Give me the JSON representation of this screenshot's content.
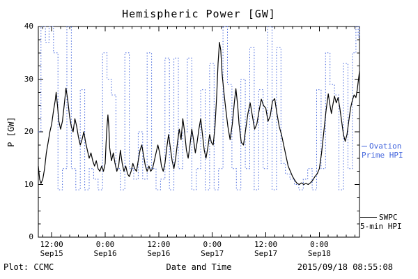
{
  "chart_data": {
    "type": "line",
    "title": "Hemispheric Power [GW]",
    "xlabel": "Date and Time",
    "ylabel": "P [GW]",
    "ylim": [
      0,
      40
    ],
    "y_ticks": [
      0,
      10,
      20,
      30,
      40
    ],
    "xlim_hours": [
      9,
      81
    ],
    "x_unit": "hours from Sep15 00:00",
    "grid": false,
    "legend_position": "right-outside",
    "x_ticks": [
      {
        "t": 12,
        "time": "12:00",
        "date": "Sep15"
      },
      {
        "t": 24,
        "time": "0:00",
        "date": "Sep16"
      },
      {
        "t": 36,
        "time": "12:00",
        "date": "Sep16"
      },
      {
        "t": 48,
        "time": "0:00",
        "date": "Sep17"
      },
      {
        "t": 60,
        "time": "12:00",
        "date": "Sep17"
      },
      {
        "t": 72,
        "time": "0:00",
        "date": "Sep18"
      }
    ],
    "series": [
      {
        "name": "Ovation Prime HPI",
        "color": "#4466dd",
        "style": "dotted-step",
        "points": [
          [
            9,
            20
          ],
          [
            9.6,
            40
          ],
          [
            10.6,
            37
          ],
          [
            11.4,
            40
          ],
          [
            12.4,
            35
          ],
          [
            13.4,
            9
          ],
          [
            14.4,
            13
          ],
          [
            15.4,
            40
          ],
          [
            16.4,
            13
          ],
          [
            17.4,
            9
          ],
          [
            18.4,
            28
          ],
          [
            19.4,
            9
          ],
          [
            20.4,
            13
          ],
          [
            21.4,
            11
          ],
          [
            22.4,
            9
          ],
          [
            23.4,
            35
          ],
          [
            24.4,
            30
          ],
          [
            25.4,
            27
          ],
          [
            26.4,
            13
          ],
          [
            27.4,
            9
          ],
          [
            28.4,
            35
          ],
          [
            29.4,
            13
          ],
          [
            30.4,
            11
          ],
          [
            31.4,
            20
          ],
          [
            32.4,
            11
          ],
          [
            33.4,
            35
          ],
          [
            34.4,
            13
          ],
          [
            35.4,
            9
          ],
          [
            36.4,
            11
          ],
          [
            37.4,
            34
          ],
          [
            38.4,
            9
          ],
          [
            39.4,
            34
          ],
          [
            40.4,
            13
          ],
          [
            41.4,
            20
          ],
          [
            42.4,
            34
          ],
          [
            43.4,
            9
          ],
          [
            44.4,
            13
          ],
          [
            45.4,
            28
          ],
          [
            46.4,
            9
          ],
          [
            47.4,
            33
          ],
          [
            48.4,
            9
          ],
          [
            49.4,
            13
          ],
          [
            50.4,
            40
          ],
          [
            51.4,
            29
          ],
          [
            52.4,
            13
          ],
          [
            53.4,
            9
          ],
          [
            54.4,
            30
          ],
          [
            55.4,
            13
          ],
          [
            56.4,
            36
          ],
          [
            57.4,
            9
          ],
          [
            58.4,
            28
          ],
          [
            59.4,
            13
          ],
          [
            60.4,
            40
          ],
          [
            61.4,
            9
          ],
          [
            62.4,
            36
          ],
          [
            63.4,
            14
          ],
          [
            64.4,
            12
          ],
          [
            65.4,
            11
          ],
          [
            66.4,
            10
          ],
          [
            67.4,
            9
          ],
          [
            68.4,
            11
          ],
          [
            69.4,
            13
          ],
          [
            70.4,
            9
          ],
          [
            71.4,
            28
          ],
          [
            72.4,
            13
          ],
          [
            73.4,
            35
          ],
          [
            74.4,
            29
          ],
          [
            75.4,
            27
          ],
          [
            76.4,
            9
          ],
          [
            77.4,
            33
          ],
          [
            78.4,
            13
          ],
          [
            79.4,
            35
          ],
          [
            80.2,
            40
          ],
          [
            80.7,
            38
          ],
          [
            81,
            40
          ]
        ]
      },
      {
        "name": "SWPC 5-min HPI",
        "color": "#000000",
        "style": "solid",
        "points": [
          [
            9,
            13.5
          ],
          [
            9.3,
            11
          ],
          [
            9.6,
            10.2
          ],
          [
            10,
            11
          ],
          [
            10.4,
            13
          ],
          [
            10.8,
            16
          ],
          [
            11.2,
            18
          ],
          [
            11.6,
            20
          ],
          [
            12,
            21.5
          ],
          [
            12.4,
            24
          ],
          [
            12.8,
            26
          ],
          [
            13,
            27.5
          ],
          [
            13.3,
            25
          ],
          [
            13.6,
            22
          ],
          [
            14,
            20.5
          ],
          [
            14.4,
            22
          ],
          [
            14.8,
            25
          ],
          [
            15.2,
            28.3
          ],
          [
            15.6,
            26
          ],
          [
            16,
            23
          ],
          [
            16.4,
            21
          ],
          [
            16.8,
            20
          ],
          [
            17.2,
            22.5
          ],
          [
            17.6,
            21
          ],
          [
            18,
            19
          ],
          [
            18.4,
            17.5
          ],
          [
            18.8,
            18.5
          ],
          [
            19.2,
            20
          ],
          [
            19.6,
            18
          ],
          [
            20,
            16.5
          ],
          [
            20.4,
            15
          ],
          [
            20.8,
            16
          ],
          [
            21.2,
            14.5
          ],
          [
            21.6,
            13.5
          ],
          [
            22,
            14.5
          ],
          [
            22.4,
            13
          ],
          [
            22.8,
            12.5
          ],
          [
            23.2,
            13.5
          ],
          [
            23.6,
            12.5
          ],
          [
            24,
            14
          ],
          [
            24.2,
            18
          ],
          [
            24.4,
            21
          ],
          [
            24.6,
            23.2
          ],
          [
            24.8,
            21
          ],
          [
            25,
            17
          ],
          [
            25.4,
            14.5
          ],
          [
            25.8,
            16
          ],
          [
            26.2,
            14
          ],
          [
            26.6,
            12.5
          ],
          [
            27,
            13.5
          ],
          [
            27.4,
            16.5
          ],
          [
            27.8,
            14
          ],
          [
            28.2,
            12.5
          ],
          [
            28.6,
            13.5
          ],
          [
            29,
            12
          ],
          [
            29.4,
            11.5
          ],
          [
            29.8,
            12.5
          ],
          [
            30.2,
            14
          ],
          [
            30.6,
            13
          ],
          [
            31,
            12.5
          ],
          [
            31.4,
            14.5
          ],
          [
            31.8,
            16.5
          ],
          [
            32.2,
            17.5
          ],
          [
            32.6,
            15.5
          ],
          [
            33,
            13.5
          ],
          [
            33.4,
            12.5
          ],
          [
            33.8,
            13.5
          ],
          [
            34.2,
            12.5
          ],
          [
            34.6,
            13
          ],
          [
            35,
            14.5
          ],
          [
            35.4,
            16
          ],
          [
            35.8,
            17.5
          ],
          [
            36.2,
            16
          ],
          [
            36.6,
            13.5
          ],
          [
            37,
            12.5
          ],
          [
            37.4,
            14
          ],
          [
            37.8,
            17
          ],
          [
            38.2,
            19.5
          ],
          [
            38.6,
            17
          ],
          [
            39,
            14.5
          ],
          [
            39.4,
            13
          ],
          [
            39.8,
            15
          ],
          [
            40.2,
            18
          ],
          [
            40.6,
            20.5
          ],
          [
            41,
            18.5
          ],
          [
            41.4,
            22.5
          ],
          [
            41.8,
            20
          ],
          [
            42.2,
            16.5
          ],
          [
            42.6,
            15
          ],
          [
            43,
            17.5
          ],
          [
            43.4,
            20.5
          ],
          [
            43.8,
            18.5
          ],
          [
            44.2,
            16
          ],
          [
            44.6,
            18
          ],
          [
            45,
            20.5
          ],
          [
            45.4,
            22.5
          ],
          [
            45.8,
            19.5
          ],
          [
            46.2,
            16.5
          ],
          [
            46.6,
            15
          ],
          [
            47,
            17
          ],
          [
            47.4,
            19.5
          ],
          [
            47.8,
            18
          ],
          [
            48.2,
            17.5
          ],
          [
            48.6,
            21
          ],
          [
            49,
            27
          ],
          [
            49.3,
            33
          ],
          [
            49.6,
            37
          ],
          [
            49.9,
            35.5
          ],
          [
            50.2,
            31
          ],
          [
            50.6,
            27.5
          ],
          [
            51,
            24.5
          ],
          [
            51.5,
            21
          ],
          [
            52,
            18.5
          ],
          [
            52.5,
            21.5
          ],
          [
            53,
            26
          ],
          [
            53.3,
            28.2
          ],
          [
            53.7,
            25
          ],
          [
            54,
            21.5
          ],
          [
            54.5,
            18
          ],
          [
            55,
            17.5
          ],
          [
            55.5,
            20.5
          ],
          [
            56,
            23.5
          ],
          [
            56.5,
            25.5
          ],
          [
            57,
            23
          ],
          [
            57.5,
            20.5
          ],
          [
            58,
            21.5
          ],
          [
            58.5,
            24
          ],
          [
            59,
            26.2
          ],
          [
            59.5,
            25
          ],
          [
            60,
            24.5
          ],
          [
            60.5,
            22
          ],
          [
            61,
            23
          ],
          [
            61.5,
            25.8
          ],
          [
            62,
            26.3
          ],
          [
            62.5,
            23.5
          ],
          [
            63,
            21
          ],
          [
            63.5,
            19.5
          ],
          [
            64,
            17.5
          ],
          [
            64.5,
            15.5
          ],
          [
            65,
            13.5
          ],
          [
            65.5,
            12.5
          ],
          [
            66,
            11.5
          ],
          [
            66.5,
            10.8
          ],
          [
            67,
            10.2
          ],
          [
            67.5,
            10
          ],
          [
            68,
            10.3
          ],
          [
            68.5,
            10
          ],
          [
            69,
            10.2
          ],
          [
            69.5,
            10
          ],
          [
            70,
            10.3
          ],
          [
            70.5,
            10.8
          ],
          [
            71,
            11.5
          ],
          [
            71.5,
            12
          ],
          [
            72,
            13
          ],
          [
            72.5,
            16
          ],
          [
            73,
            20
          ],
          [
            73.5,
            24
          ],
          [
            74,
            27.2
          ],
          [
            74.3,
            25.5
          ],
          [
            74.7,
            23.5
          ],
          [
            75,
            25
          ],
          [
            75.4,
            26.8
          ],
          [
            75.8,
            25.5
          ],
          [
            76.2,
            26.5
          ],
          [
            76.6,
            24.5
          ],
          [
            77,
            22
          ],
          [
            77.4,
            19.5
          ],
          [
            77.8,
            18.2
          ],
          [
            78.2,
            19.5
          ],
          [
            78.6,
            22
          ],
          [
            79,
            24.5
          ],
          [
            79.4,
            26
          ],
          [
            79.8,
            27
          ],
          [
            80.2,
            26.5
          ],
          [
            80.5,
            28
          ],
          [
            81,
            31.5
          ]
        ]
      }
    ]
  },
  "legend": {
    "ovation": {
      "line1": "Ovation",
      "line2": "Prime HPI"
    },
    "swpc": {
      "line1": "SWPC",
      "line2": "5-min HPI"
    }
  },
  "footer": {
    "left": "Plot: CCMC",
    "right": "2015/09/18 08:55:08"
  }
}
